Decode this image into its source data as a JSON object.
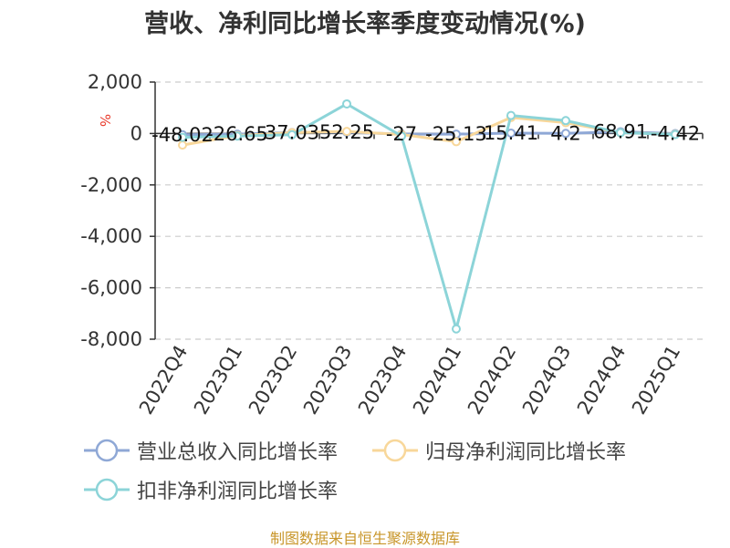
{
  "chart_data": {
    "type": "line",
    "title": "营收、净利同比增长率季度变动情况(%)",
    "ylabel": "%",
    "xlabel": "",
    "ylim": [
      -8000,
      2000
    ],
    "yticks": [
      2000,
      0,
      -2000,
      -4000,
      -6000,
      -8000
    ],
    "ytick_labels": [
      "2,000",
      "0",
      "-2,000",
      "-4,000",
      "-6,000",
      "-8,000"
    ],
    "grid": true,
    "legend_position": "bottom",
    "categories": [
      "2022Q4",
      "2023Q1",
      "2023Q2",
      "2023Q3",
      "2023Q4",
      "2024Q1",
      "2024Q2",
      "2024Q3",
      "2024Q4",
      "2025Q1"
    ],
    "series": [
      {
        "name": "营业总收入同比增长率",
        "color": "#8fa8d6",
        "values": [
          -48.02,
          -26.65,
          37.03,
          52.25,
          -27,
          -25.13,
          15.41,
          4.2,
          68.91,
          -4.42
        ],
        "labels": [
          "-48.02",
          "-26.65",
          "37.03",
          "52.25",
          "-27",
          "-25.13",
          "15.41",
          "4.2",
          "68.91",
          "-4.42"
        ]
      },
      {
        "name": "归母净利润同比增长率",
        "color": "#f8d79a",
        "values": [
          -450,
          -80,
          30,
          80,
          -40,
          -320,
          620,
          420,
          30,
          -30
        ]
      },
      {
        "name": "扣非净利润同比增长率",
        "color": "#8cd4d8",
        "values": [
          -150,
          -100,
          -50,
          1150,
          -100,
          -7600,
          700,
          500,
          30,
          -40
        ]
      }
    ]
  },
  "source_note": "制图数据来自恒生聚源数据库"
}
